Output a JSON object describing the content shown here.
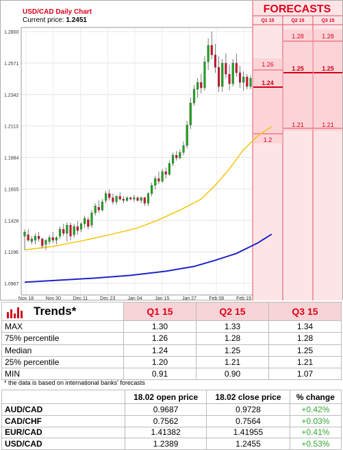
{
  "chart_data": {
    "type": "candlestick",
    "title": "USD/CAD Daily Chart",
    "current_price_label": "Current price:",
    "current_price": "1.2451",
    "y_ticks": [
      "1.2800",
      "1.2571",
      "1.2342",
      "1.2113",
      "1.1884",
      "1.1655",
      "1.1426",
      "1.1196",
      "1.0967"
    ],
    "ylim": [
      1.0967,
      1.28
    ],
    "x_ticks": [
      "Nov 18",
      "Nov 30",
      "Dec 11",
      "Dec 23",
      "Jan 04",
      "Jan 15",
      "Jan 27",
      "Feb 08",
      "Feb 19"
    ],
    "candles": [
      {
        "o": 1.131,
        "h": 1.136,
        "l": 1.121,
        "c": 1.134
      },
      {
        "o": 1.132,
        "h": 1.136,
        "l": 1.127,
        "c": 1.128
      },
      {
        "o": 1.127,
        "h": 1.131,
        "l": 1.125,
        "c": 1.129
      },
      {
        "o": 1.128,
        "h": 1.133,
        "l": 1.125,
        "c": 1.131
      },
      {
        "o": 1.131,
        "h": 1.134,
        "l": 1.127,
        "c": 1.129
      },
      {
        "o": 1.129,
        "h": 1.13,
        "l": 1.122,
        "c": 1.124
      },
      {
        "o": 1.125,
        "h": 1.129,
        "l": 1.121,
        "c": 1.128
      },
      {
        "o": 1.127,
        "h": 1.132,
        "l": 1.125,
        "c": 1.13
      },
      {
        "o": 1.13,
        "h": 1.134,
        "l": 1.126,
        "c": 1.128
      },
      {
        "o": 1.128,
        "h": 1.131,
        "l": 1.125,
        "c": 1.13
      },
      {
        "o": 1.131,
        "h": 1.138,
        "l": 1.129,
        "c": 1.136
      },
      {
        "o": 1.136,
        "h": 1.14,
        "l": 1.131,
        "c": 1.133
      },
      {
        "o": 1.133,
        "h": 1.141,
        "l": 1.127,
        "c": 1.139
      },
      {
        "o": 1.139,
        "h": 1.141,
        "l": 1.128,
        "c": 1.131
      },
      {
        "o": 1.132,
        "h": 1.14,
        "l": 1.13,
        "c": 1.138
      },
      {
        "o": 1.138,
        "h": 1.142,
        "l": 1.132,
        "c": 1.135
      },
      {
        "o": 1.136,
        "h": 1.141,
        "l": 1.134,
        "c": 1.14
      },
      {
        "o": 1.14,
        "h": 1.146,
        "l": 1.137,
        "c": 1.144
      },
      {
        "o": 1.143,
        "h": 1.145,
        "l": 1.136,
        "c": 1.138
      },
      {
        "o": 1.139,
        "h": 1.15,
        "l": 1.137,
        "c": 1.148
      },
      {
        "o": 1.148,
        "h": 1.155,
        "l": 1.146,
        "c": 1.153
      },
      {
        "o": 1.152,
        "h": 1.157,
        "l": 1.148,
        "c": 1.15
      },
      {
        "o": 1.15,
        "h": 1.158,
        "l": 1.149,
        "c": 1.156
      },
      {
        "o": 1.157,
        "h": 1.164,
        "l": 1.155,
        "c": 1.162
      },
      {
        "o": 1.162,
        "h": 1.165,
        "l": 1.157,
        "c": 1.159
      },
      {
        "o": 1.159,
        "h": 1.162,
        "l": 1.154,
        "c": 1.156
      },
      {
        "o": 1.156,
        "h": 1.161,
        "l": 1.154,
        "c": 1.16
      },
      {
        "o": 1.16,
        "h": 1.163,
        "l": 1.157,
        "c": 1.158
      },
      {
        "o": 1.158,
        "h": 1.16,
        "l": 1.155,
        "c": 1.157
      },
      {
        "o": 1.157,
        "h": 1.16,
        "l": 1.156,
        "c": 1.159
      },
      {
        "o": 1.159,
        "h": 1.16,
        "l": 1.157,
        "c": 1.158
      },
      {
        "o": 1.158,
        "h": 1.161,
        "l": 1.156,
        "c": 1.159
      },
      {
        "o": 1.159,
        "h": 1.16,
        "l": 1.156,
        "c": 1.157
      },
      {
        "o": 1.157,
        "h": 1.16,
        "l": 1.155,
        "c": 1.159
      },
      {
        "o": 1.159,
        "h": 1.16,
        "l": 1.153,
        "c": 1.155
      },
      {
        "o": 1.155,
        "h": 1.163,
        "l": 1.153,
        "c": 1.162
      },
      {
        "o": 1.162,
        "h": 1.17,
        "l": 1.16,
        "c": 1.168
      },
      {
        "o": 1.168,
        "h": 1.175,
        "l": 1.165,
        "c": 1.173
      },
      {
        "o": 1.173,
        "h": 1.178,
        "l": 1.169,
        "c": 1.171
      },
      {
        "o": 1.171,
        "h": 1.18,
        "l": 1.17,
        "c": 1.178
      },
      {
        "o": 1.178,
        "h": 1.181,
        "l": 1.173,
        "c": 1.176
      },
      {
        "o": 1.176,
        "h": 1.186,
        "l": 1.175,
        "c": 1.184
      },
      {
        "o": 1.184,
        "h": 1.192,
        "l": 1.182,
        "c": 1.19
      },
      {
        "o": 1.19,
        "h": 1.193,
        "l": 1.186,
        "c": 1.188
      },
      {
        "o": 1.188,
        "h": 1.194,
        "l": 1.187,
        "c": 1.192
      },
      {
        "o": 1.192,
        "h": 1.2,
        "l": 1.19,
        "c": 1.197
      },
      {
        "o": 1.197,
        "h": 1.215,
        "l": 1.195,
        "c": 1.212
      },
      {
        "o": 1.212,
        "h": 1.232,
        "l": 1.209,
        "c": 1.228
      },
      {
        "o": 1.228,
        "h": 1.241,
        "l": 1.226,
        "c": 1.238
      },
      {
        "o": 1.238,
        "h": 1.246,
        "l": 1.232,
        "c": 1.243
      },
      {
        "o": 1.243,
        "h": 1.249,
        "l": 1.235,
        "c": 1.239
      },
      {
        "o": 1.239,
        "h": 1.262,
        "l": 1.237,
        "c": 1.258
      },
      {
        "o": 1.258,
        "h": 1.275,
        "l": 1.252,
        "c": 1.27
      },
      {
        "o": 1.27,
        "h": 1.28,
        "l": 1.26,
        "c": 1.263
      },
      {
        "o": 1.263,
        "h": 1.271,
        "l": 1.25,
        "c": 1.254
      },
      {
        "o": 1.254,
        "h": 1.262,
        "l": 1.236,
        "c": 1.24
      },
      {
        "o": 1.24,
        "h": 1.26,
        "l": 1.236,
        "c": 1.257
      },
      {
        "o": 1.257,
        "h": 1.264,
        "l": 1.246,
        "c": 1.249
      },
      {
        "o": 1.249,
        "h": 1.256,
        "l": 1.237,
        "c": 1.242
      },
      {
        "o": 1.242,
        "h": 1.26,
        "l": 1.24,
        "c": 1.257
      },
      {
        "o": 1.257,
        "h": 1.264,
        "l": 1.247,
        "c": 1.25
      },
      {
        "o": 1.25,
        "h": 1.255,
        "l": 1.239,
        "c": 1.243
      },
      {
        "o": 1.243,
        "h": 1.251,
        "l": 1.237,
        "c": 1.247
      },
      {
        "o": 1.247,
        "h": 1.249,
        "l": 1.238,
        "c": 1.24
      },
      {
        "o": 1.24,
        "h": 1.248,
        "l": 1.238,
        "c": 1.246
      }
    ],
    "ma_yellow": [
      [
        0,
        1.121
      ],
      [
        8,
        1.1235
      ],
      [
        16,
        1.1275
      ],
      [
        24,
        1.132
      ],
      [
        32,
        1.137
      ],
      [
        38,
        1.143
      ],
      [
        44,
        1.15
      ],
      [
        50,
        1.158
      ],
      [
        54,
        1.168
      ],
      [
        58,
        1.18
      ],
      [
        62,
        1.194
      ],
      [
        66,
        1.204
      ],
      [
        70,
        1.211
      ]
    ],
    "ma_blue": [
      [
        0,
        1.0975
      ],
      [
        10,
        1.099
      ],
      [
        20,
        1.1005
      ],
      [
        30,
        1.1025
      ],
      [
        40,
        1.1055
      ],
      [
        48,
        1.109
      ],
      [
        54,
        1.1135
      ],
      [
        60,
        1.1185
      ],
      [
        66,
        1.126
      ],
      [
        70,
        1.1325
      ]
    ],
    "colors": {
      "up": "#1fa51f",
      "down": "#d0122b",
      "ma_fast": "#f5c400",
      "ma_slow": "#2020c8"
    }
  },
  "forecasts": {
    "title": "FORECASTS",
    "columns": [
      "Q1 15",
      "Q2 15",
      "Q3 15"
    ],
    "labels": {
      "q1_high": "1.26",
      "q1_median": "1.24",
      "q1_low": "1.2",
      "q2_high": "1.28",
      "q2_median": "1.25",
      "q2_low": "1.21",
      "q3_high": "1.28",
      "q3_median": "1.25",
      "q3_low": "1.21"
    }
  },
  "trends": {
    "title": "Trends*",
    "columns": [
      "Q1 15",
      "Q2 15",
      "Q3 15"
    ],
    "rows": [
      {
        "label": "MAX",
        "values": [
          "1.30",
          "1.33",
          "1.34"
        ]
      },
      {
        "label": "75% percentile",
        "values": [
          "1.26",
          "1.28",
          "1.28"
        ]
      },
      {
        "label": "Median",
        "values": [
          "1.24",
          "1.25",
          "1.25"
        ]
      },
      {
        "label": "25% percentile",
        "values": [
          "1.20",
          "1.21",
          "1.21"
        ]
      },
      {
        "label": "MIN",
        "values": [
          "0.91",
          "0.90",
          "1.07"
        ]
      }
    ],
    "note": "* the data is based on international banks' forecasts"
  },
  "rates": {
    "columns": [
      "18.02 open price",
      "18.02 close price",
      "% change"
    ],
    "rows": [
      {
        "pair": "AUD/CAD",
        "open": "0.9687",
        "close": "0.9728",
        "change": "+0.42%"
      },
      {
        "pair": "CAD/CHF",
        "open": "0.7562",
        "close": "0.7564",
        "change": "+0.03%"
      },
      {
        "pair": "EUR/CAD",
        "open": "1.41382",
        "close": "1.41955",
        "change": "+0.41%"
      },
      {
        "pair": "USD/CAD",
        "open": "1.2389",
        "close": "1.2455",
        "change": "+0.53%"
      }
    ]
  }
}
